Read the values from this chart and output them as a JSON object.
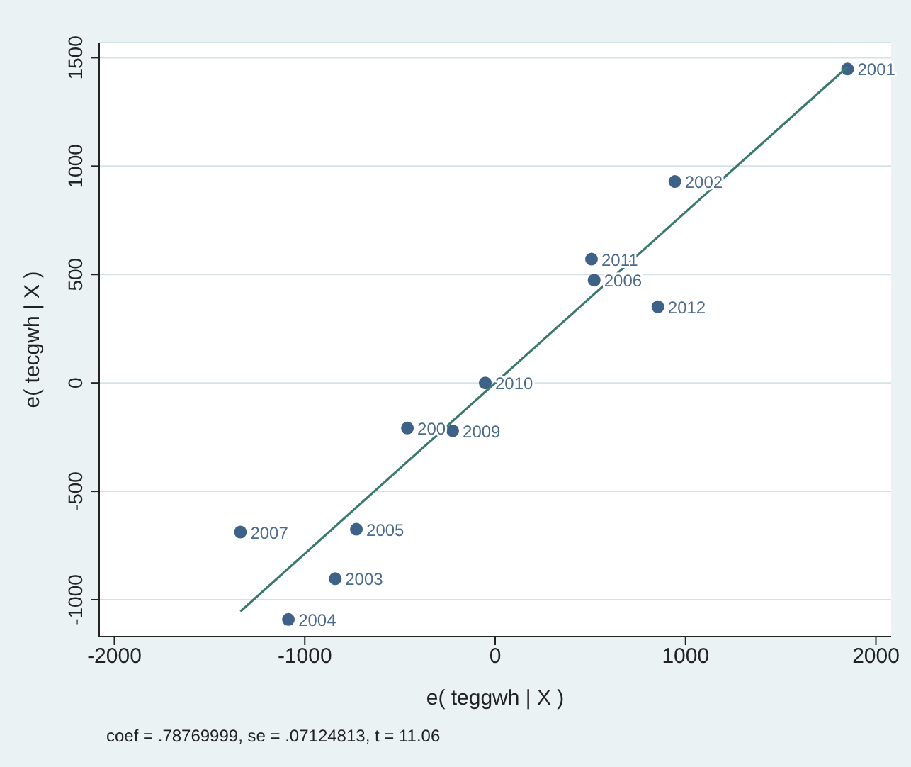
{
  "chart_data": {
    "type": "scatter",
    "xlabel": "e( teggwh | X )",
    "ylabel": "e( tecgwh | X )",
    "annotations": [
      "coef = .78769999, se = .07124813, t = 11.06",
      {
        "text": "2001",
        "x": 1851,
        "y": 1448
      },
      {
        "text": "2002",
        "x": 944,
        "y": 929
      },
      {
        "text": "2011",
        "x": 506,
        "y": 571
      },
      {
        "text": "2006",
        "x": 520,
        "y": 474
      },
      {
        "text": "2012",
        "x": 855,
        "y": 351
      },
      {
        "text": "2010",
        "x": -52,
        "y": 0
      },
      {
        "text": "200",
        "x": -461,
        "y": -208
      },
      {
        "text": "2009",
        "x": -223,
        "y": -221
      },
      {
        "text": "2007",
        "x": -1338,
        "y": -688
      },
      {
        "text": "2005",
        "x": -729,
        "y": -675
      },
      {
        "text": "2003",
        "x": -840,
        "y": -903
      },
      {
        "text": "2004",
        "x": -1086,
        "y": -1091
      }
    ],
    "xlim": [
      -2080,
      2080
    ],
    "ylim": [
      -1170,
      1570
    ],
    "xticks": [
      -2000,
      -1000,
      0,
      1000,
      2000
    ],
    "yticks": [
      -1000,
      -500,
      0,
      500,
      1000,
      1500
    ],
    "grid": "y",
    "marker": "circle",
    "series": [
      {
        "type": "scatter",
        "color": "#3e6187",
        "x": [
          1851,
          944,
          506,
          520,
          855,
          -52,
          -461,
          -223,
          -1338,
          -729,
          -840,
          -1086
        ],
        "values": [
          1448,
          929,
          571,
          474,
          351,
          0,
          -208,
          -221,
          -688,
          -675,
          -903,
          -1091
        ]
      },
      {
        "type": "line",
        "color": "#3a7a6e",
        "x": [
          -1338,
          1851
        ],
        "values": [
          -1054,
          1458
        ],
        "marker": "none"
      }
    ]
  }
}
